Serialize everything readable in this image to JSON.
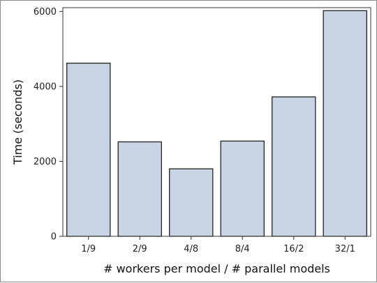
{
  "chart_data": {
    "type": "bar",
    "title": "",
    "xlabel": "# workers per model / # parallel models",
    "ylabel": "Time (seconds)",
    "categories": [
      "1/9",
      "2/9",
      "4/8",
      "8/4",
      "16/2",
      "32/1"
    ],
    "values": [
      4620,
      2520,
      1800,
      2540,
      3720,
      6020
    ],
    "ylim": [
      0,
      6100
    ],
    "yticks": [
      0,
      2000,
      4000,
      6000
    ],
    "grid": false,
    "legend": "none",
    "colors": {
      "bar_fill": "#c8d4e3",
      "bar_stroke": "#222222",
      "axis": "#333333"
    }
  }
}
